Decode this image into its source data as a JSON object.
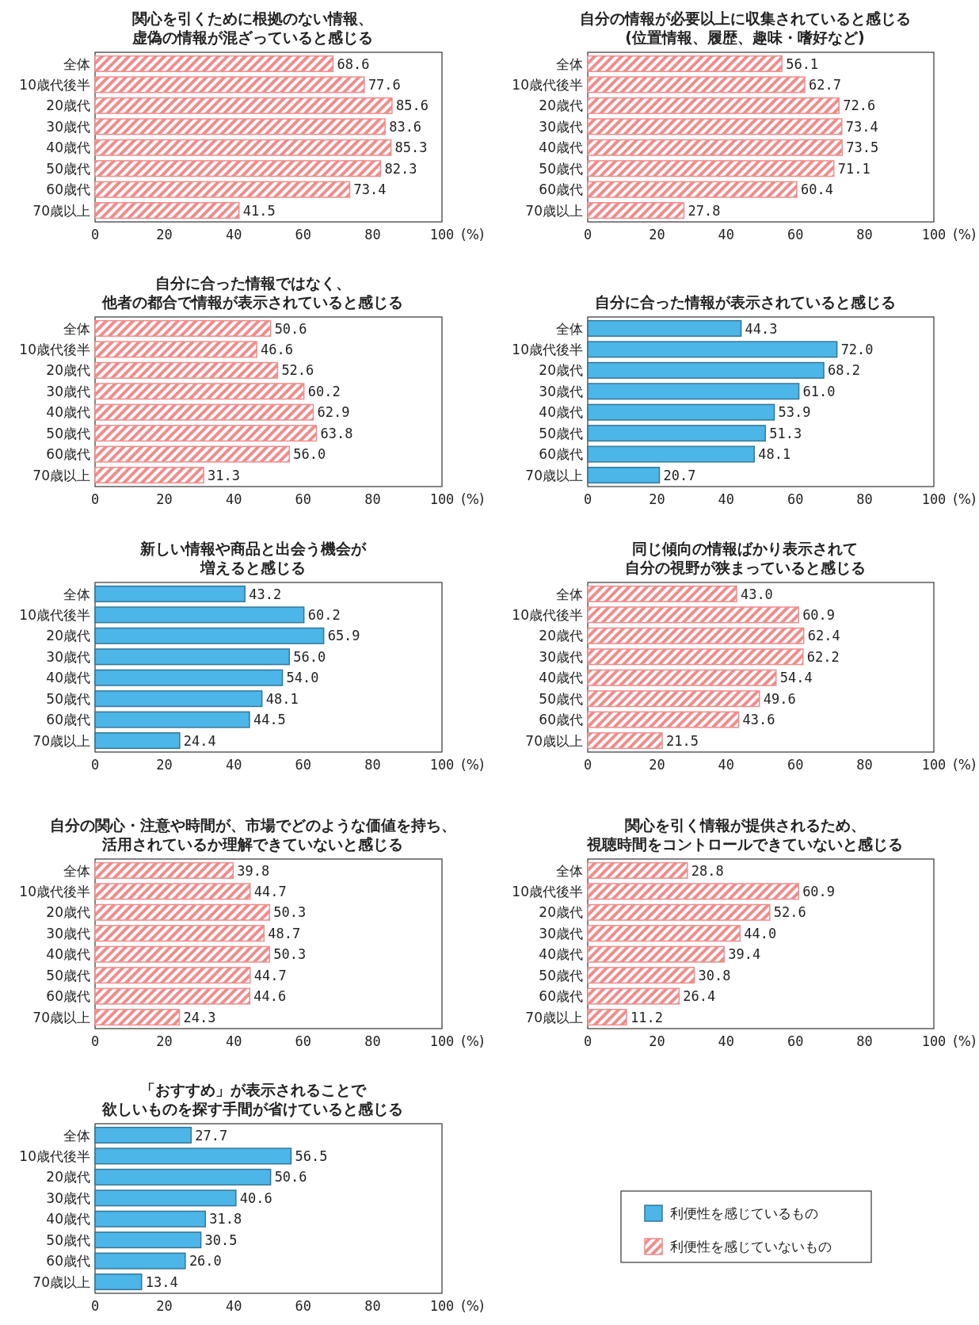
{
  "chart_data": [
    {
      "type": "bar",
      "orientation": "horizontal",
      "title": "関心を引くために根拠のない情報、虚偽の情報が混ざっていると感じる",
      "xlabel": "(%)",
      "categories": [
        "全体",
        "10歳代後半",
        "20歳代",
        "30歳代",
        "40歳代",
        "50歳代",
        "60歳代",
        "70歳以上"
      ],
      "xlim": [
        0,
        100
      ],
      "xticks": [
        0,
        20,
        40,
        60,
        80,
        100
      ],
      "series": [
        {
          "name": "利便性を感じていないもの",
          "color": "#f08c8c",
          "values": [
            68.6,
            77.6,
            85.6,
            83.6,
            85.3,
            82.3,
            73.4,
            41.5
          ],
          "value_labels": [
            "68.6",
            "77.6",
            "85.6",
            "83.6",
            "85.3",
            "82.3",
            "73.4",
            "41.5"
          ]
        }
      ]
    },
    {
      "type": "bar",
      "orientation": "horizontal",
      "title": "自分の情報が必要以上に収集されていると感じる(位置情報、履歴、趣味・嗜好など)",
      "xlabel": "(%)",
      "categories": [
        "全体",
        "10歳代後半",
        "20歳代",
        "30歳代",
        "40歳代",
        "50歳代",
        "60歳代",
        "70歳以上"
      ],
      "xlim": [
        0,
        100
      ],
      "xticks": [
        0,
        20,
        40,
        60,
        80,
        100
      ],
      "series": [
        {
          "name": "利便性を感じていないもの",
          "color": "#f08c8c",
          "values": [
            56.1,
            62.7,
            72.6,
            73.4,
            73.5,
            71.1,
            60.4,
            27.8
          ],
          "value_labels": [
            "56.1",
            "62.7",
            "72.6",
            "73.4",
            "73.5",
            "71.1",
            "60.4",
            "27.8"
          ]
        }
      ]
    },
    {
      "type": "bar",
      "orientation": "horizontal",
      "title": "自分に合った情報ではなく、他者の都合で情報が表示されていると感じる",
      "xlabel": "(%)",
      "categories": [
        "全体",
        "10歳代後半",
        "20歳代",
        "30歳代",
        "40歳代",
        "50歳代",
        "60歳代",
        "70歳以上"
      ],
      "xlim": [
        0,
        100
      ],
      "xticks": [
        0,
        20,
        40,
        60,
        80,
        100
      ],
      "series": [
        {
          "name": "利便性を感じていないもの",
          "color": "#f08c8c",
          "values": [
            50.6,
            46.6,
            52.6,
            60.2,
            62.9,
            63.8,
            56.0,
            31.3
          ],
          "value_labels": [
            "50.6",
            "46.6",
            "52.6",
            "60.2",
            "62.9",
            "63.8",
            "56.0",
            "31.3"
          ]
        }
      ]
    },
    {
      "type": "bar",
      "orientation": "horizontal",
      "title": "自分に合った情報が表示されていると感じる",
      "xlabel": "(%)",
      "categories": [
        "全体",
        "10歳代後半",
        "20歳代",
        "30歳代",
        "40歳代",
        "50歳代",
        "60歳代",
        "70歳以上"
      ],
      "xlim": [
        0,
        100
      ],
      "xticks": [
        0,
        20,
        40,
        60,
        80,
        100
      ],
      "series": [
        {
          "name": "利便性を感じているもの",
          "color": "#4db6e8",
          "values": [
            44.3,
            72.0,
            68.2,
            61.0,
            53.9,
            51.3,
            48.1,
            20.7
          ],
          "value_labels": [
            "44.3",
            "72.0",
            "68.2",
            "61.0",
            "53.9",
            "51.3",
            "48.1",
            "20.7"
          ]
        }
      ]
    },
    {
      "type": "bar",
      "orientation": "horizontal",
      "title": "新しい情報や商品と出会う機会が増えると感じる",
      "xlabel": "(%)",
      "categories": [
        "全体",
        "10歳代後半",
        "20歳代",
        "30歳代",
        "40歳代",
        "50歳代",
        "60歳代",
        "70歳以上"
      ],
      "xlim": [
        0,
        100
      ],
      "xticks": [
        0,
        20,
        40,
        60,
        80,
        100
      ],
      "series": [
        {
          "name": "利便性を感じているもの",
          "color": "#4db6e8",
          "values": [
            43.2,
            60.2,
            65.9,
            56.0,
            54.0,
            48.1,
            44.5,
            24.4
          ],
          "value_labels": [
            "43.2",
            "60.2",
            "65.9",
            "56.0",
            "54.0",
            "48.1",
            "44.5",
            "24.4"
          ]
        }
      ]
    },
    {
      "type": "bar",
      "orientation": "horizontal",
      "title": "同じ傾向の情報ばかり表示されて自分の視野が狭まっていると感じる",
      "xlabel": "(%)",
      "categories": [
        "全体",
        "10歳代後半",
        "20歳代",
        "30歳代",
        "40歳代",
        "50歳代",
        "60歳代",
        "70歳以上"
      ],
      "xlim": [
        0,
        100
      ],
      "xticks": [
        0,
        20,
        40,
        60,
        80,
        100
      ],
      "series": [
        {
          "name": "利便性を感じていないもの",
          "color": "#f08c8c",
          "values": [
            43.0,
            60.9,
            62.4,
            62.2,
            54.4,
            49.6,
            43.6,
            21.5
          ],
          "value_labels": [
            "43.0",
            "60.9",
            "62.4",
            "62.2",
            "54.4",
            "49.6",
            "43.6",
            "21.5"
          ]
        }
      ]
    },
    {
      "type": "bar",
      "orientation": "horizontal",
      "title": "自分の関心・注意や時間が、市場でどのような価値を持ち、活用されているか理解できていないと感じる",
      "xlabel": "(%)",
      "categories": [
        "全体",
        "10歳代後半",
        "20歳代",
        "30歳代",
        "40歳代",
        "50歳代",
        "60歳代",
        "70歳以上"
      ],
      "xlim": [
        0,
        100
      ],
      "xticks": [
        0,
        20,
        40,
        60,
        80,
        100
      ],
      "series": [
        {
          "name": "利便性を感じていないもの",
          "color": "#f08c8c",
          "values": [
            39.8,
            44.7,
            50.3,
            48.7,
            50.3,
            44.7,
            44.6,
            24.3
          ],
          "value_labels": [
            "39.8",
            "44.7",
            "50.3",
            "48.7",
            "50.3",
            "44.7",
            "44.6",
            "24.3"
          ]
        }
      ]
    },
    {
      "type": "bar",
      "orientation": "horizontal",
      "title": "関心を引く情報が提供されるため、視聴時間をコントロールできていないと感じる",
      "xlabel": "(%)",
      "categories": [
        "全体",
        "10歳代後半",
        "20歳代",
        "30歳代",
        "40歳代",
        "50歳代",
        "60歳代",
        "70歳以上"
      ],
      "xlim": [
        0,
        100
      ],
      "xticks": [
        0,
        20,
        40,
        60,
        80,
        100
      ],
      "series": [
        {
          "name": "利便性を感じていないもの",
          "color": "#f08c8c",
          "values": [
            28.8,
            60.9,
            52.6,
            44.0,
            39.4,
            30.8,
            26.4,
            11.2
          ],
          "value_labels": [
            "28.8",
            "60.9",
            "52.6",
            "44.0",
            "39.4",
            "30.8",
            "26.4",
            "11.2"
          ]
        }
      ]
    },
    {
      "type": "bar",
      "orientation": "horizontal",
      "title": "「おすすめ」が表示されることで欲しいものを探す手間が省けていると感じる",
      "xlabel": "(%)",
      "legend": "bottom right",
      "categories": [
        "全体",
        "10歳代後半",
        "20歳代",
        "30歳代",
        "40歳代",
        "50歳代",
        "60歳代",
        "70歳以上"
      ],
      "xlim": [
        0,
        100
      ],
      "xticks": [
        0,
        20,
        40,
        60,
        80,
        100
      ],
      "series": [
        {
          "name": "利便性を感じているもの",
          "color": "#4db6e8",
          "values": [
            27.7,
            56.5,
            50.6,
            40.6,
            31.8,
            30.5,
            26.0,
            13.4
          ],
          "value_labels": [
            "27.7",
            "56.5",
            "50.6",
            "40.6",
            "31.8",
            "30.5",
            "26.0",
            "13.4"
          ]
        }
      ]
    }
  ]
}
